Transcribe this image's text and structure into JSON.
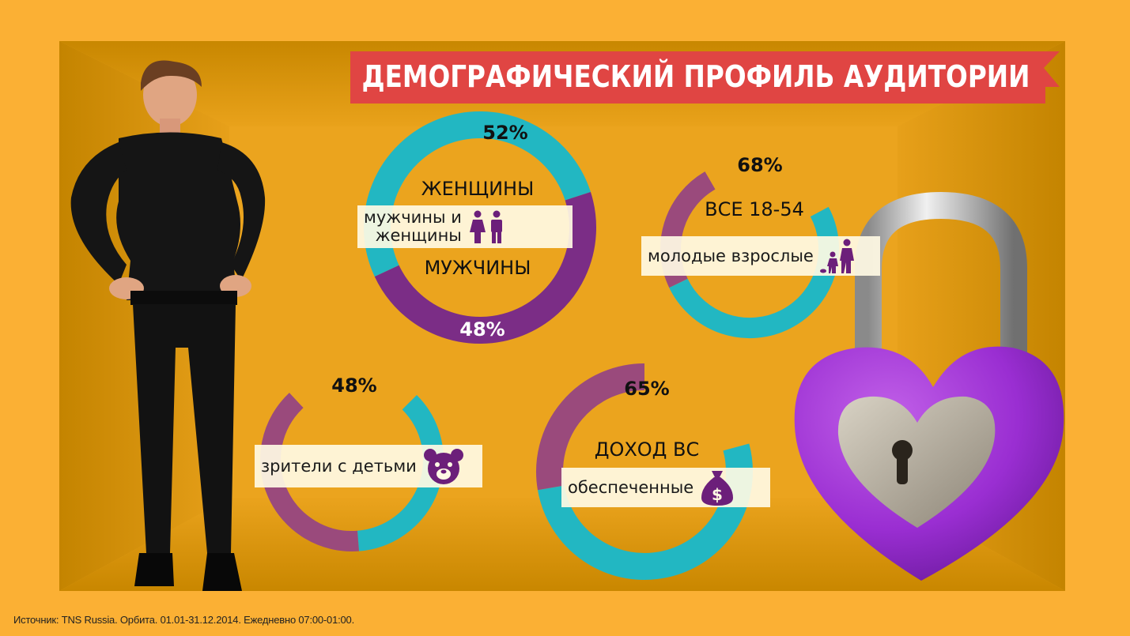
{
  "title": "ДЕМОГРАФИЧЕСКИЙ ПРОФИЛЬ АУДИТОРИИ",
  "source": "Источник: TNS Russia. Орбита. 01.01-31.12.2014. Ежедневно 07:00-01:00.",
  "colors": {
    "background": "#fbb034",
    "room": "#eaa21a",
    "banner": "#e04543",
    "teal": "#22b7c2",
    "purple": "#7b2d86",
    "purple_muted": "#9a4a7c",
    "icon": "#6c1f7a"
  },
  "chart_data": [
    {
      "type": "pie",
      "segments": [
        {
          "label": "ЖЕНЩИНЫ",
          "value": 52,
          "value_label": "52%"
        },
        {
          "label": "МУЖЧИНЫ",
          "value": 48,
          "value_label": "48%"
        }
      ],
      "tag": "мужчины и женщины",
      "icon": "couple-icon"
    },
    {
      "type": "pie",
      "label": "ВСЕ 18-54",
      "value": 68,
      "value_label": "68%",
      "tag": "молодые взрослые",
      "icon": "family-icon"
    },
    {
      "type": "pie",
      "value": 48,
      "value_label": "48%",
      "tag": "зрители с детьми",
      "icon": "teddy-bear-icon"
    },
    {
      "type": "pie",
      "label": "ДОХОД ВС",
      "value": 65,
      "value_label": "65%",
      "tag": "обеспеченные",
      "icon": "money-bag-icon"
    }
  ],
  "tags": {
    "couple_line1": "мужчины и",
    "couple_line2": "женщины",
    "young": "молодые взрослые",
    "kids": "зрители с детьми",
    "rich": "обеспеченные"
  }
}
